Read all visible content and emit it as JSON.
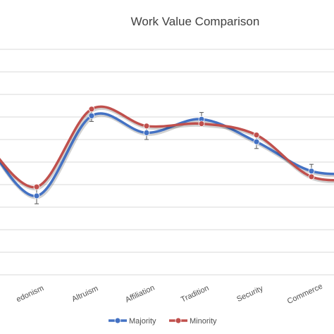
{
  "chart_data": {
    "type": "line",
    "title": "Work Value Comparison",
    "categories": [
      "Hedonism",
      "Altruism",
      "Affiliation",
      "Tradition",
      "Security",
      "Commerce"
    ],
    "x_label_text": {
      "Hedonism": "edonism",
      "Altruism": "Altruism",
      "Affiliation": "Affiliation",
      "Tradition": "Tradition",
      "Security": "Security",
      "Commerce": "Commerce"
    },
    "ylim": [
      0,
      10
    ],
    "grid": true,
    "smooth": true,
    "error_bars": true,
    "legend_position": "bottom",
    "series": [
      {
        "name": "Majority",
        "color": "#4472C4",
        "values": [
          3.5,
          7.05,
          6.3,
          6.9,
          5.9,
          4.6
        ],
        "error": [
          0.35,
          0.25,
          0.3,
          0.3,
          0.3,
          0.3
        ]
      },
      {
        "name": "Minority",
        "color": "#C0504D",
        "values": [
          3.9,
          7.35,
          6.6,
          6.7,
          6.2,
          4.35
        ],
        "error": [
          0,
          0,
          0,
          0,
          0,
          0
        ]
      }
    ],
    "offscreen_left_values": {
      "Majority": 6.2,
      "Minority": 6.1
    },
    "offscreen_right_values": {
      "Majority": 4.5,
      "Minority": 4.3
    }
  }
}
